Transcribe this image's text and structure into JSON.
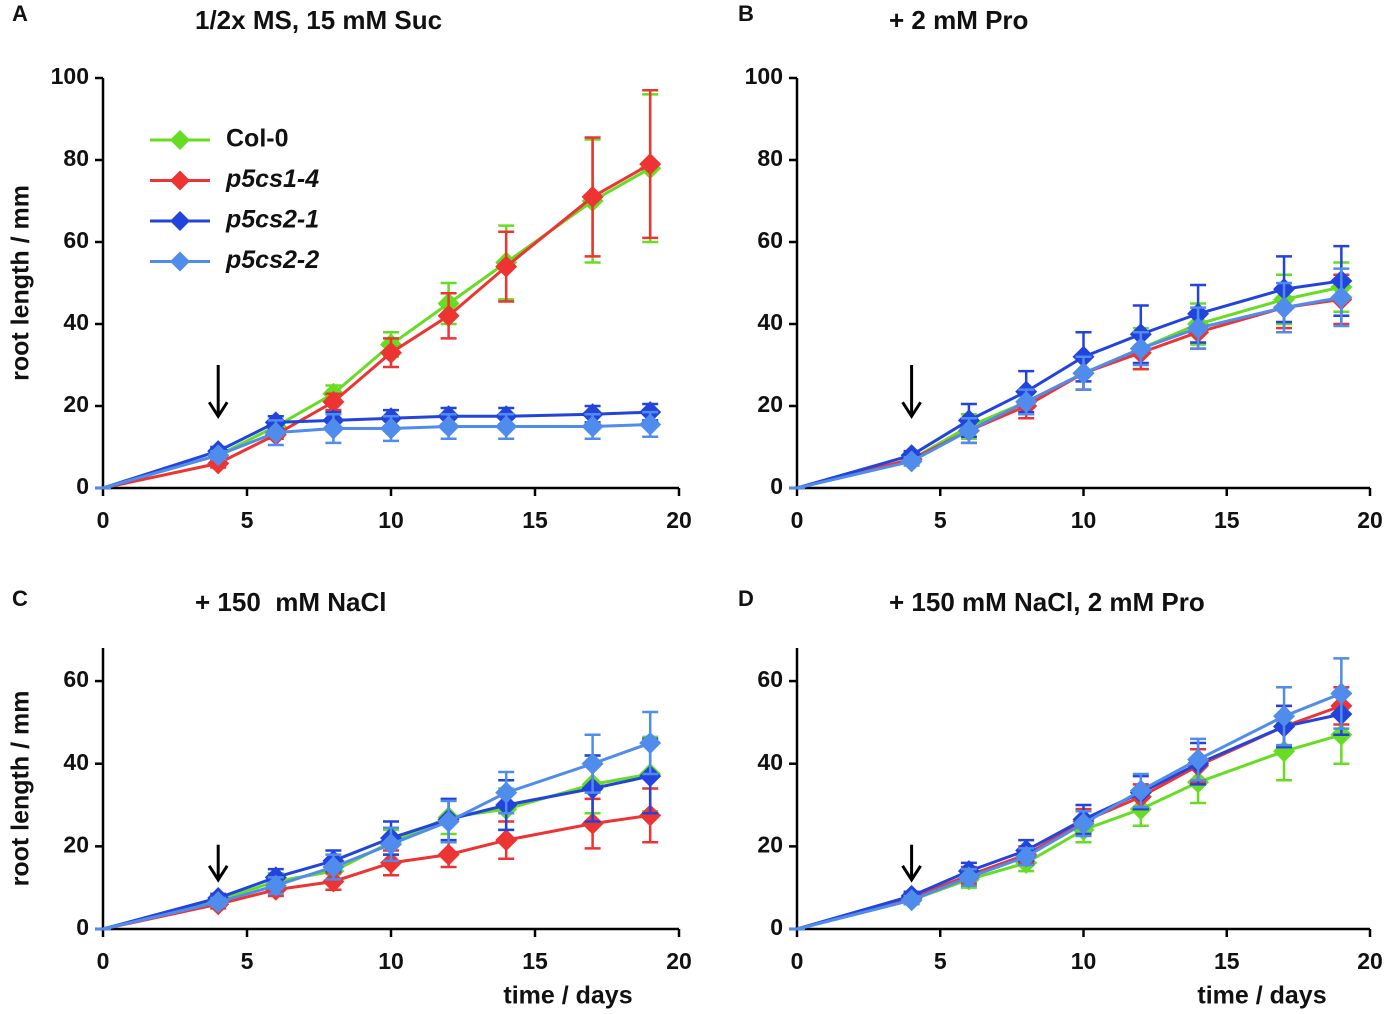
{
  "chart_data": [
    {
      "type": "line",
      "panel_label": "A",
      "title": "1/2x MS, 15 mM Suc",
      "ylabel": "root length / mm",
      "legend": "upper left",
      "x": [
        0,
        4,
        6,
        8,
        10,
        12,
        14,
        17,
        19
      ],
      "xlim": [
        0,
        20
      ],
      "xticks": [
        0,
        5,
        10,
        15,
        20
      ],
      "ylim": [
        0,
        100
      ],
      "yticks": [
        0,
        20,
        40,
        60,
        80,
        100
      ],
      "arrow_x": 4,
      "series": [
        {
          "name": "Col-0",
          "color": "#66dd22",
          "values": [
            0,
            8,
            15,
            23,
            35,
            45,
            55,
            70,
            78
          ],
          "errors": [
            0,
            1,
            1.5,
            2,
            3,
            5,
            9,
            15,
            18
          ]
        },
        {
          "name": "p5cs1-4",
          "color": "#ee3333",
          "values": [
            0,
            6,
            13,
            21,
            33,
            42,
            54,
            71,
            79
          ],
          "errors": [
            0,
            1,
            1,
            2,
            3.5,
            5.5,
            8.5,
            14.5,
            18
          ]
        },
        {
          "name": "p5cs2-1",
          "color": "#2244dd",
          "values": [
            0,
            9,
            16,
            16.5,
            17,
            17.5,
            17.5,
            18,
            18.5
          ],
          "errors": [
            0,
            1,
            1.5,
            2,
            2,
            2,
            2,
            2,
            2
          ]
        },
        {
          "name": "p5cs2-2",
          "color": "#4f8cec",
          "values": [
            0,
            8,
            13.5,
            14.5,
            14.5,
            15,
            15,
            15,
            15.5
          ],
          "errors": [
            0,
            1,
            3,
            3.5,
            3,
            3,
            3,
            3,
            3
          ]
        }
      ]
    },
    {
      "type": "line",
      "panel_label": "B",
      "title": "+ 2 mM Pro",
      "x": [
        0,
        4,
        6,
        8,
        10,
        12,
        14,
        17,
        19
      ],
      "xlim": [
        0,
        20
      ],
      "xticks": [
        0,
        5,
        10,
        15,
        20
      ],
      "ylim": [
        0,
        100
      ],
      "yticks": [
        0,
        20,
        40,
        60,
        80,
        100
      ],
      "arrow_x": 4,
      "series": [
        {
          "color": "#66dd22",
          "values": [
            0,
            7,
            15,
            21,
            28,
            34,
            40,
            46,
            49
          ],
          "errors": [
            0,
            1,
            3,
            3,
            4,
            5,
            5,
            6,
            6
          ]
        },
        {
          "color": "#ee3333",
          "values": [
            0,
            7,
            14,
            20,
            28,
            33,
            38,
            44,
            46
          ],
          "errors": [
            0,
            1,
            3,
            3,
            4,
            4,
            4,
            5,
            6
          ]
        },
        {
          "color": "#2244dd",
          "values": [
            0,
            8,
            16.5,
            23.5,
            32,
            37.5,
            42.5,
            48.5,
            50.5
          ],
          "errors": [
            0,
            1,
            4,
            5,
            6,
            7,
            7,
            8,
            8.5
          ]
        },
        {
          "color": "#4f8cec",
          "values": [
            0,
            6.5,
            14,
            21,
            28,
            34,
            39,
            44,
            46.5
          ],
          "errors": [
            0,
            1,
            3,
            3,
            4,
            4,
            5,
            6,
            7
          ]
        }
      ]
    },
    {
      "type": "line",
      "panel_label": "C",
      "title": "+ 150  mM NaCl",
      "ylabel": "root length / mm",
      "xlabel": "time / days",
      "x": [
        0,
        4,
        6,
        8,
        10,
        12,
        14,
        17,
        19
      ],
      "xlim": [
        0,
        20
      ],
      "xticks": [
        0,
        5,
        10,
        15,
        20
      ],
      "ylim": [
        0,
        68
      ],
      "yticks": [
        0,
        20,
        40,
        60
      ],
      "arrow_x": 4,
      "series": [
        {
          "color": "#66dd22",
          "values": [
            0,
            7,
            11.5,
            14,
            21,
            27,
            29,
            35,
            37.5
          ],
          "errors": [
            0,
            1,
            2,
            2.5,
            3,
            4,
            5,
            7,
            9
          ]
        },
        {
          "color": "#ee3333",
          "values": [
            0,
            6,
            9.5,
            11.5,
            16,
            18,
            21.5,
            25.5,
            27.5
          ],
          "errors": [
            0,
            1,
            1.5,
            2,
            3,
            3,
            4.5,
            6,
            6.5
          ]
        },
        {
          "color": "#2244dd",
          "values": [
            0,
            7.5,
            12.5,
            16.5,
            22,
            26.5,
            30,
            34,
            37
          ],
          "errors": [
            0,
            1,
            2,
            2.5,
            4,
            5,
            6,
            8,
            9
          ]
        },
        {
          "color": "#4f8cec",
          "values": [
            0,
            6.5,
            10.5,
            15,
            20.5,
            26,
            33,
            40,
            45
          ],
          "errors": [
            0,
            1,
            2,
            3,
            4,
            5,
            5,
            7,
            7.5
          ]
        }
      ]
    },
    {
      "type": "line",
      "panel_label": "D",
      "title": "+ 150 mM NaCl, 2 mM Pro",
      "xlabel": "time / days",
      "x": [
        0,
        4,
        6,
        8,
        10,
        12,
        14,
        17,
        19
      ],
      "xlim": [
        0,
        20
      ],
      "xticks": [
        0,
        5,
        10,
        15,
        20
      ],
      "ylim": [
        0,
        68
      ],
      "yticks": [
        0,
        20,
        40,
        60
      ],
      "arrow_x": 4,
      "series": [
        {
          "color": "#66dd22",
          "values": [
            0,
            7,
            12,
            16,
            24,
            29,
            35.5,
            43,
            47
          ],
          "errors": [
            0,
            1,
            2,
            2,
            3,
            4,
            5,
            7,
            7
          ]
        },
        {
          "color": "#ee3333",
          "values": [
            0,
            7.5,
            13,
            18,
            26,
            32,
            39.5,
            49,
            54
          ],
          "errors": [
            0,
            1,
            2,
            2,
            3,
            3,
            4,
            5,
            4.5
          ]
        },
        {
          "color": "#2244dd",
          "values": [
            0,
            8,
            14,
            19,
            26.5,
            33,
            40,
            49,
            52
          ],
          "errors": [
            0,
            1,
            2,
            2.5,
            3.5,
            4,
            5,
            5,
            5
          ]
        },
        {
          "color": "#4f8cec",
          "values": [
            0,
            7,
            12.5,
            17.5,
            25.5,
            33.5,
            41,
            51.5,
            57
          ],
          "errors": [
            0,
            1,
            2,
            2,
            3,
            4,
            5,
            7,
            8.5
          ]
        }
      ]
    }
  ]
}
